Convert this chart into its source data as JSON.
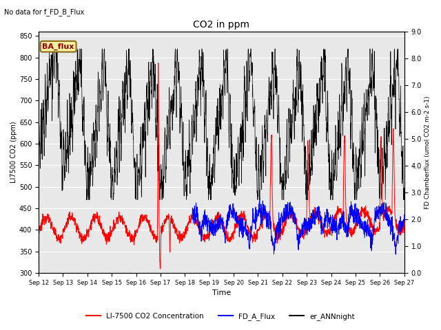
{
  "title": "CO2 in ppm",
  "top_left_text": "No data for f_FD_B_Flux",
  "annotation_text": "BA_flux",
  "xlabel": "Time",
  "ylabel_left": "LI7500 CO2 (ppm)",
  "ylabel_right": "FD Chamberflux (umol CO2 m-2 s-1)",
  "ylim_left": [
    300,
    860
  ],
  "ylim_right": [
    0.0,
    9.0
  ],
  "yticks_left": [
    300,
    350,
    400,
    450,
    500,
    550,
    600,
    650,
    700,
    750,
    800,
    850
  ],
  "yticks_right": [
    0.0,
    1.0,
    2.0,
    3.0,
    4.0,
    5.0,
    6.0,
    7.0,
    8.0,
    9.0
  ],
  "xtick_labels": [
    "Sep 12",
    "Sep 13",
    "Sep 14",
    "Sep 15",
    "Sep 16",
    "Sep 17",
    "Sep 18",
    "Sep 19",
    "Sep 20",
    "Sep 21",
    "Sep 22",
    "Sep 23",
    "Sep 24",
    "Sep 25",
    "Sep 26",
    "Sep 27"
  ],
  "legend_labels": [
    "LI-7500 CO2 Concentration",
    "FD_A_Flux",
    "er_ANNnight"
  ],
  "legend_colors": [
    "red",
    "blue",
    "black"
  ],
  "n_points": 2000
}
